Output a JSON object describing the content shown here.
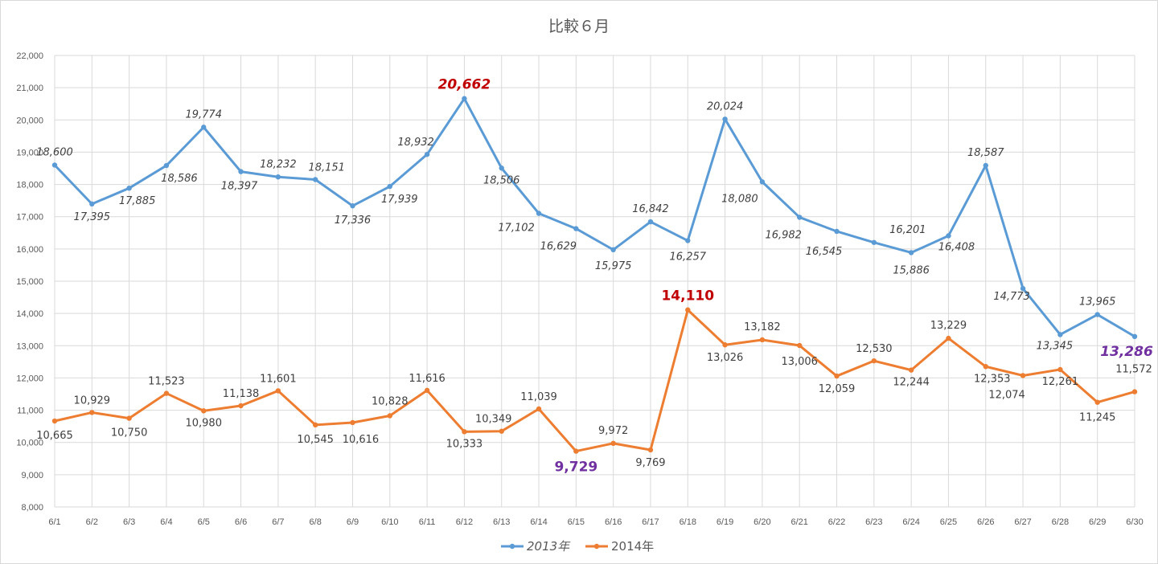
{
  "title": "比較６月",
  "colors": {
    "s2013": "#5b9bd5",
    "s2014": "#ed7d31",
    "grid": "#d9d9d9",
    "highlight_max": "#c00000",
    "highlight_min": "#7030a0"
  },
  "chart_data": {
    "type": "line",
    "title": "比較６月",
    "categories": [
      "6/1",
      "6/2",
      "6/3",
      "6/4",
      "6/5",
      "6/6",
      "6/7",
      "6/8",
      "6/9",
      "6/10",
      "6/11",
      "6/12",
      "6/13",
      "6/14",
      "6/15",
      "6/16",
      "6/17",
      "6/18",
      "6/19",
      "6/20",
      "6/21",
      "6/22",
      "6/23",
      "6/24",
      "6/25",
      "6/26",
      "6/27",
      "6/28",
      "6/29",
      "6/30"
    ],
    "y_ticks": [
      "8,000",
      "9,000",
      "10,000",
      "11,000",
      "12,000",
      "13,000",
      "14,000",
      "15,000",
      "16,000",
      "17,000",
      "18,000",
      "19,000",
      "20,000",
      "21,000",
      "22,000"
    ],
    "ylim": [
      8000,
      22000
    ],
    "grid": true,
    "legend_position": "bottom",
    "series": [
      {
        "name": "2013年",
        "color": "#5b9bd5",
        "italic_labels": true,
        "values": [
          18600,
          17395,
          17885,
          18586,
          19774,
          18397,
          18232,
          18151,
          17336,
          17939,
          18932,
          20662,
          18506,
          17102,
          16629,
          15975,
          16842,
          16257,
          20024,
          18080,
          16982,
          16545,
          16201,
          15886,
          16408,
          18587,
          14773,
          13345,
          13965,
          13286
        ],
        "labels": [
          "18,600",
          "17,395",
          "17,885",
          "18,586",
          "19,774",
          "18,397",
          "18,232",
          "18,151",
          "17,336",
          "17,939",
          "18,932",
          "20,662",
          "18,506",
          "17,102",
          "16,629",
          "15,975",
          "16,842",
          "16,257",
          "20,024",
          "18,080",
          "16,982",
          "16,545",
          "16,201",
          "15,886",
          "16,408",
          "18,587",
          "14,773",
          "13,345",
          "13,965",
          "13,286"
        ],
        "highlight_max_index": 11,
        "highlight_min_index": 29
      },
      {
        "name": "2014年",
        "color": "#ed7d31",
        "italic_labels": false,
        "values": [
          10665,
          10929,
          10750,
          11523,
          10980,
          11138,
          11601,
          10545,
          10616,
          10828,
          11616,
          10333,
          10349,
          11039,
          9729,
          9972,
          9769,
          14110,
          13026,
          13182,
          13006,
          12059,
          12530,
          12244,
          13229,
          12353,
          12074,
          12261,
          11245,
          11572
        ],
        "labels": [
          "10,665",
          "10,929",
          "10,750",
          "11,523",
          "10,980",
          "11,138",
          "11,601",
          "10,545",
          "10,616",
          "10,828",
          "11,616",
          "10,333",
          "10,349",
          "11,039",
          "9,729",
          "9,972",
          "9,769",
          "14,110",
          "13,026",
          "13,182",
          "13,006",
          "12,059",
          "12,530",
          "12,244",
          "13,229",
          "12,353",
          "12,074",
          "12,261",
          "11,245",
          "11,572"
        ],
        "highlight_max_index": 17,
        "highlight_min_index": 14
      }
    ]
  }
}
